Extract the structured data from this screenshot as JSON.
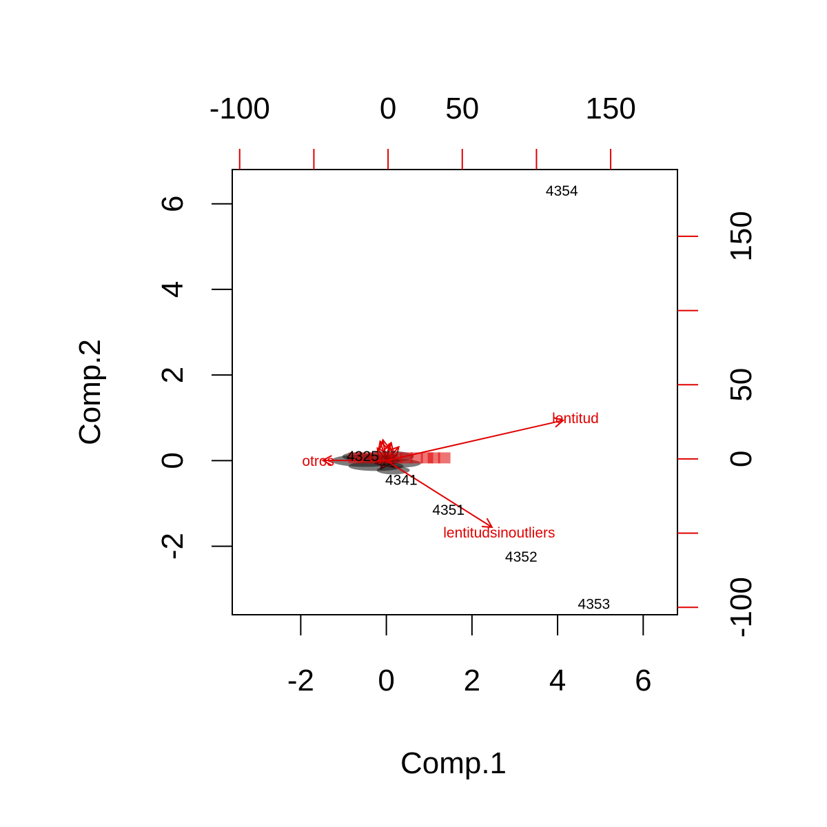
{
  "chart_data": {
    "type": "scatter",
    "subtype": "biplot",
    "title": "",
    "xlabel": "Comp.1",
    "ylabel": "Comp.2",
    "xlim": [
      -3.6,
      6.8
    ],
    "ylim": [
      -3.6,
      6.8
    ],
    "xticks": [
      -2,
      0,
      2,
      4,
      6
    ],
    "yticks": [
      -2,
      0,
      2,
      4,
      6
    ],
    "x_tick_labels": [
      "-2",
      "0",
      "2",
      "4",
      "6"
    ],
    "y_tick_labels": [
      "-2",
      "0",
      "2",
      "4",
      "6"
    ],
    "top_axis": {
      "ticks": [
        -100,
        -50,
        0,
        50,
        100,
        150
      ],
      "labels": [
        "-100",
        "",
        "0",
        "50",
        "",
        "150"
      ]
    },
    "right_axis": {
      "ticks": [
        -100,
        -50,
        0,
        50,
        100,
        150
      ],
      "labels": [
        "-100",
        "",
        "0",
        "50",
        "",
        "150"
      ]
    },
    "secondary_lim": [
      -105,
      195
    ],
    "colors": {
      "points": "#000000",
      "loadings": "#e00000"
    },
    "points": [
      {
        "label": "4354",
        "x": 4.1,
        "y": 6.3
      },
      {
        "label": "4351",
        "x": 1.45,
        "y": -1.15
      },
      {
        "label": "4352",
        "x": 3.15,
        "y": -2.25
      },
      {
        "label": "4353",
        "x": 4.85,
        "y": -3.35
      },
      {
        "label": "4341",
        "x": 0.35,
        "y": -0.45
      },
      {
        "label": "4325",
        "x": -0.55,
        "y": 0.1
      }
    ],
    "loadings": [
      {
        "name": "lentitud",
        "x": 118,
        "y": 26
      },
      {
        "name": "lentitudsinoutliers",
        "x": 70,
        "y": -46
      },
      {
        "name": "otros",
        "x": -44,
        "y": -1
      }
    ]
  }
}
